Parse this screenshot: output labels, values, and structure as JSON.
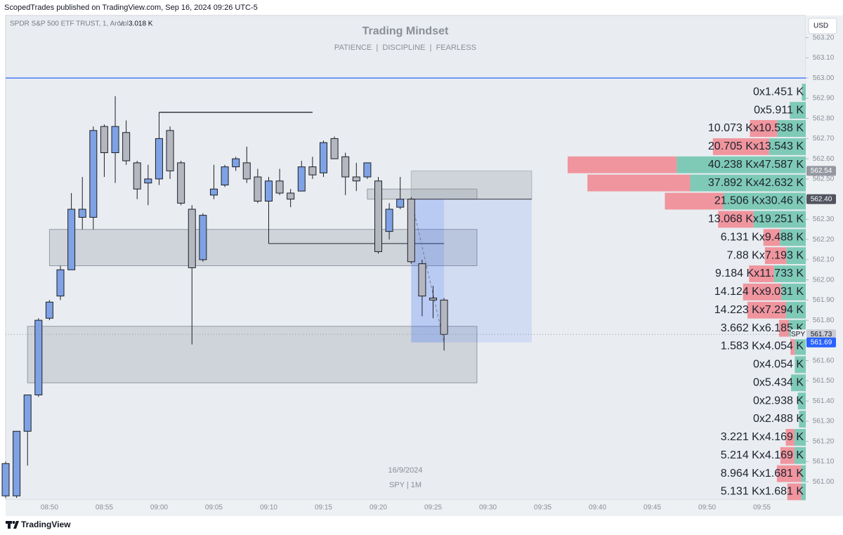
{
  "header": {
    "text": "ScopedTrades published on TradingView.com, Sep 16, 2024 09:26 UTC-5"
  },
  "footer": {
    "brand": "TradingView"
  },
  "chart_data": {
    "type": "candlestick",
    "title": "Trading Mindset",
    "subtitle": "PATIENCE  |  DISCIPLINE  |  FEARLESS",
    "legend": {
      "symbol": "SPDR S&P 500 ETF TRUST, 1, Arca",
      "volume_label": "Vol",
      "volume": "3.018 K"
    },
    "currency": "USD",
    "date_label": "16/9/2024",
    "interval_label": "SPY | 1M",
    "grid": false,
    "up_color": "#7fa2e4",
    "down_color": "#b4b7bf",
    "outline_color": "#1b1e25",
    "xlim": [
      "08:46",
      "09:59"
    ],
    "xticks": [
      "08:50",
      "08:55",
      "09:00",
      "09:05",
      "09:10",
      "09:15",
      "09:20",
      "09:25",
      "09:30",
      "09:35",
      "09:40",
      "09:45",
      "09:50",
      "09:55"
    ],
    "ylim": [
      560.91,
      563.31
    ],
    "yticks": [
      {
        "value": 561.0,
        "label": "561.00"
      },
      {
        "value": 561.1,
        "label": "561.10"
      },
      {
        "value": 561.2,
        "label": "561.20"
      },
      {
        "value": 561.3,
        "label": "561.30"
      },
      {
        "value": 561.4,
        "label": "561.40"
      },
      {
        "value": 561.5,
        "label": "561.50"
      },
      {
        "value": 561.6,
        "label": "561.60"
      },
      {
        "value": 561.7,
        "label": "561.70"
      },
      {
        "value": 561.8,
        "label": "561.80"
      },
      {
        "value": 561.9,
        "label": "561.90"
      },
      {
        "value": 562.0,
        "label": "562.00"
      },
      {
        "value": 562.1,
        "label": "562.10"
      },
      {
        "value": 562.2,
        "label": "562.20"
      },
      {
        "value": 562.3,
        "label": "562.30"
      },
      {
        "value": 562.4,
        "label": "562.40"
      },
      {
        "value": 562.5,
        "label": "562.50"
      },
      {
        "value": 562.6,
        "label": "562.60"
      },
      {
        "value": 562.7,
        "label": "562.70"
      },
      {
        "value": 562.8,
        "label": "562.80"
      },
      {
        "value": 562.9,
        "label": "562.90"
      },
      {
        "value": 563.0,
        "label": "563.00"
      },
      {
        "value": 563.1,
        "label": "563.10"
      },
      {
        "value": 563.2,
        "label": "563.20"
      }
    ],
    "x": [
      "08:46",
      "08:47",
      "08:48",
      "08:49",
      "08:50",
      "08:51",
      "08:52",
      "08:53",
      "08:54",
      "08:55",
      "08:56",
      "08:57",
      "08:58",
      "08:59",
      "09:00",
      "09:01",
      "09:02",
      "09:03",
      "09:04",
      "09:05",
      "09:06",
      "09:07",
      "09:08",
      "09:09",
      "09:10",
      "09:11",
      "09:12",
      "09:13",
      "09:14",
      "09:15",
      "09:16",
      "09:17",
      "09:18",
      "09:19",
      "09:20",
      "09:21",
      "09:22",
      "09:23",
      "09:24",
      "09:25",
      "09:26"
    ],
    "open": [
      560.93,
      560.93,
      561.25,
      561.43,
      561.81,
      561.92,
      562.05,
      562.31,
      562.31,
      562.76,
      562.63,
      562.73,
      562.58,
      562.48,
      562.5,
      562.74,
      562.58,
      562.35,
      562.1,
      562.42,
      562.47,
      562.56,
      562.58,
      562.51,
      562.39,
      562.49,
      562.43,
      562.44,
      562.56,
      562.53,
      562.7,
      562.61,
      562.51,
      562.51,
      562.49,
      562.24,
      562.36,
      562.4,
      562.08,
      561.91,
      561.9
    ],
    "high": [
      561.1,
      561.25,
      561.43,
      561.81,
      561.9,
      562.07,
      562.43,
      562.51,
      562.76,
      562.77,
      562.91,
      562.79,
      562.59,
      562.57,
      562.83,
      562.76,
      562.59,
      562.37,
      562.33,
      562.57,
      562.57,
      562.61,
      562.66,
      562.55,
      562.51,
      562.55,
      562.45,
      562.59,
      562.61,
      562.69,
      562.71,
      562.63,
      562.58,
      562.58,
      562.51,
      562.38,
      562.51,
      562.41,
      562.1,
      561.97,
      561.91
    ],
    "low": [
      560.92,
      560.92,
      561.08,
      561.42,
      561.8,
      561.9,
      562.05,
      562.25,
      562.25,
      562.51,
      562.48,
      562.57,
      562.4,
      562.37,
      562.47,
      562.5,
      562.37,
      561.68,
      562.09,
      562.4,
      562.46,
      562.54,
      562.48,
      562.38,
      562.18,
      562.42,
      562.36,
      562.44,
      562.5,
      562.51,
      562.6,
      562.42,
      562.44,
      562.5,
      562.13,
      562.2,
      562.35,
      562.08,
      561.82,
      561.81,
      561.65
    ],
    "close": [
      561.09,
      561.25,
      561.43,
      561.8,
      561.89,
      562.05,
      562.35,
      562.35,
      562.74,
      562.63,
      562.76,
      562.59,
      562.45,
      562.5,
      562.7,
      562.54,
      562.38,
      562.06,
      562.32,
      562.45,
      562.56,
      562.6,
      562.5,
      562.39,
      562.49,
      562.43,
      562.4,
      562.56,
      562.52,
      562.68,
      562.6,
      562.51,
      562.49,
      562.58,
      562.14,
      562.35,
      562.4,
      562.09,
      561.92,
      561.9,
      561.73
    ],
    "levels": [
      {
        "y": 563.0,
        "color": "#2962ff"
      },
      {
        "x": [
          "09:00",
          "09:14"
        ],
        "y": 562.83,
        "color": "#131722"
      },
      {
        "x": [
          "09:10",
          "09:26"
        ],
        "y": 562.18,
        "color": "#131722"
      }
    ],
    "zones": [
      {
        "x": [
          "08:50",
          "09:29"
        ],
        "y": [
          562.25,
          562.07
        ]
      },
      {
        "x": [
          "08:48",
          "09:29"
        ],
        "y": [
          561.77,
          561.49
        ]
      },
      {
        "x": [
          "09:19",
          "09:29"
        ],
        "y": [
          562.45,
          562.4
        ]
      }
    ],
    "position": {
      "x": [
        "09:23",
        "09:34"
      ],
      "entry": 562.4,
      "stop": 562.54,
      "target": 561.69,
      "filled_to": "09:26"
    },
    "price_tags": [
      {
        "value": 562.54,
        "label": "562.54",
        "color": "#9598a1",
        "text_color": "#ffffff"
      },
      {
        "value": 562.4,
        "label": "562.40",
        "color": "#50535e",
        "text_color": "#ffffff"
      },
      {
        "value": 561.73,
        "label": "561.73",
        "color": "#c9ccd4",
        "text_color": "#131722",
        "prefix": "SPY",
        "line": "dotted"
      },
      {
        "value": 561.69,
        "label": "561.69",
        "color": "#2962ff",
        "text_color": "#ffffff"
      }
    ],
    "volume_profile": {
      "sell_color": "#f0959e",
      "buy_color": "#7ecab7",
      "rows": [
        {
          "price": 562.93,
          "sell": 0,
          "buy": 1.451,
          "label": "0x1.451 K"
        },
        {
          "price": 562.84,
          "sell": 0,
          "buy": 5.911,
          "label": "0x5.911 K"
        },
        {
          "price": 562.75,
          "sell": 10.073,
          "buy": 10.538,
          "label": "10.073 Kx10.538 K"
        },
        {
          "price": 562.66,
          "sell": 20.705,
          "buy": 13.543,
          "label": "20.705 Kx13.543 K"
        },
        {
          "price": 562.57,
          "sell": 40.238,
          "buy": 47.587,
          "label": "40.238 Kx47.587 K"
        },
        {
          "price": 562.48,
          "sell": 37.892,
          "buy": 42.632,
          "label": "37.892 Kx42.632 K"
        },
        {
          "price": 562.39,
          "sell": 21.506,
          "buy": 30.46,
          "label": "21.506 Kx30.46 K"
        },
        {
          "price": 562.3,
          "sell": 13.068,
          "buy": 19.251,
          "label": "13.068 Kx19.251 K"
        },
        {
          "price": 562.21,
          "sell": 6.131,
          "buy": 9.488,
          "label": "6.131 Kx9.488 K"
        },
        {
          "price": 562.12,
          "sell": 7.88,
          "buy": 7.193,
          "label": "7.88 Kx7.193 K"
        },
        {
          "price": 562.03,
          "sell": 9.184,
          "buy": 11.733,
          "label": "9.184 Kx11.733 K"
        },
        {
          "price": 561.94,
          "sell": 14.124,
          "buy": 9.031,
          "label": "14.124 Kx9.031 K"
        },
        {
          "price": 561.85,
          "sell": 14.223,
          "buy": 7.294,
          "label": "14.223 Kx7.294 K"
        },
        {
          "price": 561.76,
          "sell": 3.662,
          "buy": 6.185,
          "label": "3.662 Kx6.185 K"
        },
        {
          "price": 561.67,
          "sell": 1.583,
          "buy": 4.054,
          "label": "1.583 Kx4.054 K"
        },
        {
          "price": 561.58,
          "sell": 0,
          "buy": 4.054,
          "label": "0x4.054 K"
        },
        {
          "price": 561.49,
          "sell": 0,
          "buy": 5.434,
          "label": "0x5.434 K"
        },
        {
          "price": 561.4,
          "sell": 0,
          "buy": 2.938,
          "label": "0x2.938 K"
        },
        {
          "price": 561.31,
          "sell": 0,
          "buy": 2.488,
          "label": "0x2.488 K"
        },
        {
          "price": 561.22,
          "sell": 3.221,
          "buy": 4.169,
          "label": "3.221 Kx4.169 K"
        },
        {
          "price": 561.13,
          "sell": 5.214,
          "buy": 4.169,
          "label": "5.214 Kx4.169 K"
        },
        {
          "price": 561.04,
          "sell": 8.964,
          "buy": 1.681,
          "label": "8.964 Kx1.681 K"
        },
        {
          "price": 560.95,
          "sell": 5.131,
          "buy": 1.681,
          "label": "5.131 Kx1.681 K"
        }
      ]
    }
  }
}
